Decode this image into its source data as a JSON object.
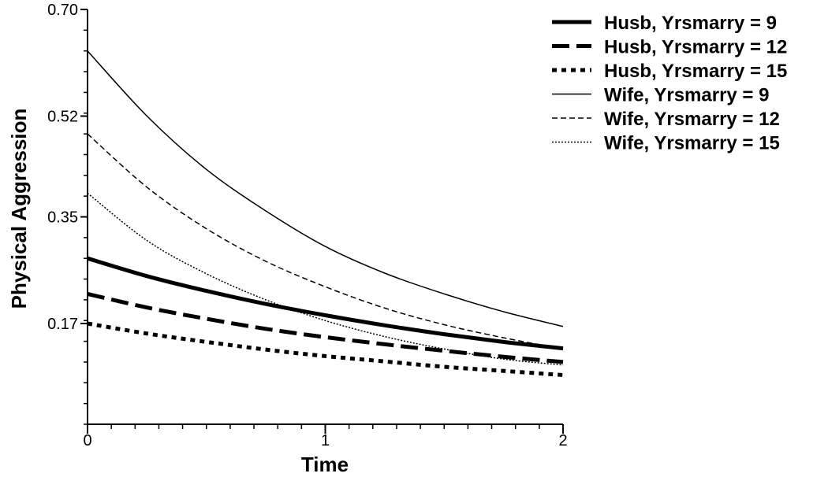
{
  "chart_data": {
    "type": "line",
    "title": "",
    "xlabel": "Time",
    "ylabel": "Physical Aggression",
    "xlim": [
      0,
      2
    ],
    "ylim": [
      0.0,
      0.7
    ],
    "x_ticks": [
      0,
      1,
      2
    ],
    "x_tick_labels": [
      "0",
      "1",
      "2"
    ],
    "y_ticks": [
      0.17,
      0.35,
      0.52,
      0.7
    ],
    "y_tick_labels": [
      "0.17",
      "0.35",
      "0.52",
      "0.70"
    ],
    "grid": false,
    "legend_position": "top-right",
    "x": [
      0,
      0.25,
      0.5,
      0.75,
      1,
      1.25,
      1.5,
      1.75,
      2
    ],
    "series": [
      {
        "name": "Husb, Yrsmarry = 9",
        "style": "thick-solid",
        "values": [
          0.28,
          0.25,
          0.225,
          0.203,
          0.184,
          0.167,
          0.152,
          0.139,
          0.128
        ]
      },
      {
        "name": "Husb, Yrsmarry = 12",
        "style": "thick-dashed",
        "values": [
          0.22,
          0.197,
          0.178,
          0.161,
          0.147,
          0.135,
          0.124,
          0.114,
          0.105
        ]
      },
      {
        "name": "Husb, Yrsmarry = 15",
        "style": "thick-dotted",
        "values": [
          0.17,
          0.153,
          0.139,
          0.126,
          0.115,
          0.106,
          0.097,
          0.09,
          0.083
        ]
      },
      {
        "name": "Wife, Yrsmarry = 9",
        "style": "thin-solid",
        "values": [
          0.63,
          0.52,
          0.43,
          0.36,
          0.3,
          0.255,
          0.22,
          0.19,
          0.165
        ]
      },
      {
        "name": "Wife, Yrsmarry = 12",
        "style": "thin-dashed",
        "values": [
          0.49,
          0.4,
          0.33,
          0.275,
          0.232,
          0.196,
          0.168,
          0.146,
          0.127
        ]
      },
      {
        "name": "Wife, Yrsmarry = 15",
        "style": "thin-dotted",
        "values": [
          0.39,
          0.31,
          0.254,
          0.21,
          0.175,
          0.148,
          0.127,
          0.11,
          0.1
        ]
      }
    ]
  }
}
